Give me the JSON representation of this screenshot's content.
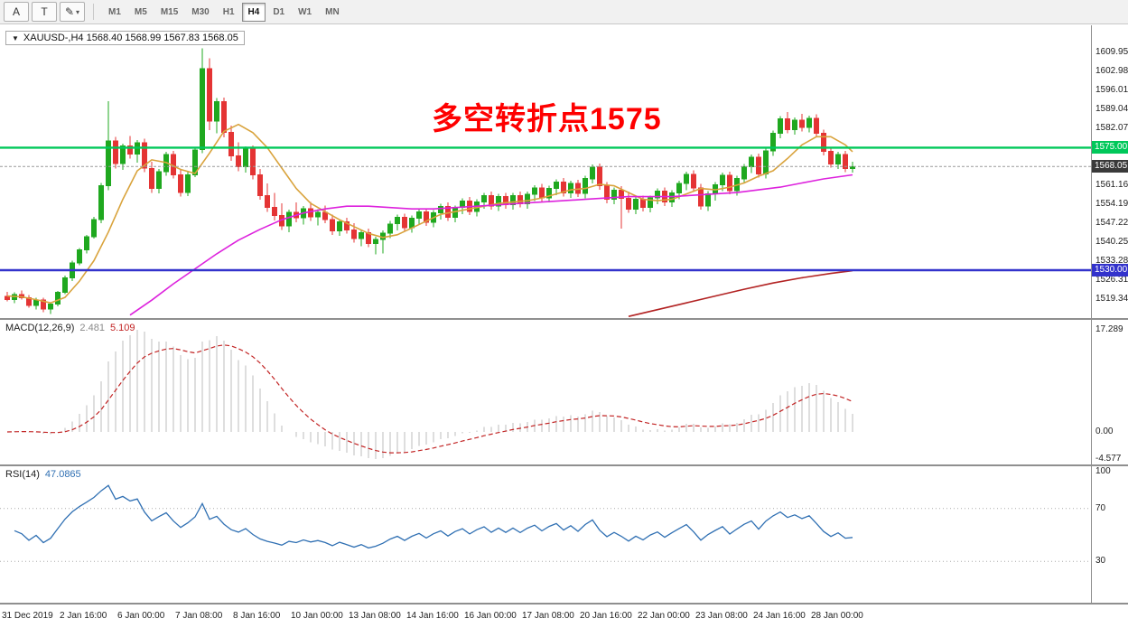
{
  "toolbar": {
    "tool_buttons": [
      {
        "label": "A"
      },
      {
        "label": "T"
      },
      {
        "label": "✎",
        "caret": "▾"
      }
    ],
    "timeframes": [
      "M1",
      "M5",
      "M15",
      "M30",
      "H1",
      "H4",
      "D1",
      "W1",
      "MN"
    ],
    "active_timeframe": "H4"
  },
  "chart": {
    "title": "XAUUSD-,H4  1568.40 1568.99 1567.83 1568.05",
    "symbol_marker": "▼",
    "annotation": {
      "text": "多空转折点1575",
      "color": "#FE0000"
    },
    "colors": {
      "up": "#1FA81F",
      "down": "#E43434",
      "ma_fast": "#D9A33C",
      "ma_mid": "#DD22DD",
      "ma_slow": "#B22222",
      "resistance": "#00C85A",
      "support": "#3333CC",
      "price_badge_bg": "#3A3A3A",
      "macd_hist": "#BDBDBD",
      "macd_signal": "#C22424",
      "rsi": "#3070B3"
    }
  },
  "chart_data": {
    "type": "candlestick",
    "symbol": "XAUUSD-",
    "period": "H4",
    "title": "XAUUSD-,H4 1568.40 1568.99 1567.83 1568.05",
    "ohlc": [
      [
        1520.3,
        1522.1,
        1518.6,
        1519.2
      ],
      [
        1519.2,
        1521.8,
        1517.9,
        1521.0
      ],
      [
        1521.0,
        1522.6,
        1519.2,
        1519.8
      ],
      [
        1519.8,
        1520.9,
        1516.2,
        1517.1
      ],
      [
        1517.1,
        1519.8,
        1515.6,
        1519.0
      ],
      [
        1519.0,
        1519.9,
        1514.6,
        1515.8
      ],
      [
        1515.8,
        1518.2,
        1513.9,
        1517.5
      ],
      [
        1517.5,
        1522.4,
        1516.8,
        1521.8
      ],
      [
        1521.8,
        1528.0,
        1521.2,
        1527.2
      ],
      [
        1527.2,
        1533.5,
        1526.0,
        1532.6
      ],
      [
        1532.6,
        1538.2,
        1531.8,
        1537.4
      ],
      [
        1537.4,
        1543.0,
        1536.2,
        1542.2
      ],
      [
        1542.2,
        1549.5,
        1541.6,
        1548.6
      ],
      [
        1548.6,
        1562.0,
        1547.2,
        1561.0
      ],
      [
        1561.0,
        1592.0,
        1559.4,
        1577.5
      ],
      [
        1577.5,
        1579.0,
        1567.4,
        1569.2
      ],
      [
        1569.2,
        1576.5,
        1566.8,
        1575.6
      ],
      [
        1575.6,
        1579.2,
        1571.0,
        1572.6
      ],
      [
        1572.6,
        1577.8,
        1569.4,
        1576.8
      ],
      [
        1576.8,
        1578.2,
        1566.0,
        1567.4
      ],
      [
        1567.4,
        1569.8,
        1558.4,
        1560.0
      ],
      [
        1560.0,
        1567.2,
        1558.2,
        1566.2
      ],
      [
        1566.2,
        1573.4,
        1564.6,
        1572.4
      ],
      [
        1572.4,
        1573.8,
        1563.6,
        1565.0
      ],
      [
        1565.0,
        1567.2,
        1557.0,
        1558.6
      ],
      [
        1558.6,
        1566.0,
        1557.2,
        1565.0
      ],
      [
        1565.0,
        1575.2,
        1564.2,
        1574.2
      ],
      [
        1574.2,
        1611.4,
        1573.0,
        1604.0
      ],
      [
        1604.0,
        1607.8,
        1581.4,
        1584.8
      ],
      [
        1584.8,
        1593.2,
        1580.2,
        1591.8
      ],
      [
        1591.8,
        1593.4,
        1578.8,
        1580.6
      ],
      [
        1580.6,
        1583.0,
        1570.2,
        1572.0
      ],
      [
        1572.0,
        1577.0,
        1566.4,
        1568.0
      ],
      [
        1568.0,
        1575.4,
        1565.8,
        1574.4
      ],
      [
        1574.4,
        1575.8,
        1563.4,
        1565.0
      ],
      [
        1565.0,
        1567.2,
        1555.8,
        1557.4
      ],
      [
        1557.4,
        1561.8,
        1551.4,
        1553.0
      ],
      [
        1553.0,
        1558.4,
        1548.2,
        1550.0
      ],
      [
        1550.0,
        1554.6,
        1544.8,
        1546.2
      ],
      [
        1546.2,
        1552.2,
        1544.0,
        1551.2
      ],
      [
        1551.2,
        1554.8,
        1547.6,
        1549.2
      ],
      [
        1549.2,
        1553.6,
        1546.8,
        1552.6
      ],
      [
        1552.6,
        1555.0,
        1548.0,
        1549.6
      ],
      [
        1549.6,
        1552.4,
        1546.4,
        1551.2
      ],
      [
        1551.2,
        1553.8,
        1547.2,
        1548.6
      ],
      [
        1548.6,
        1550.4,
        1543.0,
        1544.4
      ],
      [
        1544.4,
        1548.8,
        1542.6,
        1547.8
      ],
      [
        1547.8,
        1549.2,
        1543.4,
        1544.8
      ],
      [
        1544.8,
        1547.2,
        1540.2,
        1541.6
      ],
      [
        1541.6,
        1545.0,
        1538.8,
        1543.8
      ],
      [
        1543.8,
        1545.2,
        1538.4,
        1539.8
      ],
      [
        1539.8,
        1542.2,
        1535.8,
        1541.2
      ],
      [
        1541.2,
        1544.6,
        1536.2,
        1543.6
      ],
      [
        1543.6,
        1548.0,
        1541.8,
        1547.0
      ],
      [
        1547.0,
        1550.4,
        1544.6,
        1549.4
      ],
      [
        1549.4,
        1550.8,
        1544.2,
        1545.6
      ],
      [
        1545.6,
        1550.0,
        1543.8,
        1549.0
      ],
      [
        1549.0,
        1552.4,
        1546.6,
        1551.4
      ],
      [
        1551.4,
        1552.8,
        1546.2,
        1547.6
      ],
      [
        1547.6,
        1552.0,
        1545.8,
        1551.0
      ],
      [
        1551.0,
        1554.4,
        1548.6,
        1553.4
      ],
      [
        1553.4,
        1554.8,
        1548.0,
        1549.4
      ],
      [
        1549.4,
        1553.8,
        1547.6,
        1553.0
      ],
      [
        1553.0,
        1556.4,
        1550.6,
        1555.4
      ],
      [
        1555.4,
        1556.8,
        1550.2,
        1551.6
      ],
      [
        1551.6,
        1556.0,
        1549.8,
        1555.0
      ],
      [
        1555.0,
        1558.4,
        1552.6,
        1557.4
      ],
      [
        1557.4,
        1558.8,
        1552.2,
        1553.6
      ],
      [
        1553.6,
        1558.0,
        1551.8,
        1557.0
      ],
      [
        1557.0,
        1558.4,
        1552.6,
        1554.0
      ],
      [
        1554.0,
        1558.4,
        1552.2,
        1557.4
      ],
      [
        1557.4,
        1558.8,
        1553.0,
        1554.4
      ],
      [
        1554.4,
        1558.8,
        1552.6,
        1557.8
      ],
      [
        1557.8,
        1561.2,
        1555.4,
        1560.2
      ],
      [
        1560.2,
        1561.6,
        1555.2,
        1556.6
      ],
      [
        1556.6,
        1561.0,
        1554.8,
        1560.0
      ],
      [
        1560.0,
        1563.4,
        1557.6,
        1562.4
      ],
      [
        1562.4,
        1563.8,
        1557.0,
        1558.4
      ],
      [
        1558.4,
        1562.8,
        1556.6,
        1561.8
      ],
      [
        1561.8,
        1563.2,
        1556.8,
        1558.2
      ],
      [
        1558.2,
        1564.6,
        1556.4,
        1563.6
      ],
      [
        1563.6,
        1568.8,
        1561.8,
        1567.8
      ],
      [
        1567.8,
        1569.2,
        1559.6,
        1561.0
      ],
      [
        1561.0,
        1562.4,
        1554.6,
        1556.0
      ],
      [
        1556.0,
        1560.4,
        1554.2,
        1559.4
      ],
      [
        1559.4,
        1560.8,
        1545.2,
        1556.4
      ],
      [
        1556.4,
        1558.8,
        1551.0,
        1552.4
      ],
      [
        1552.4,
        1556.8,
        1550.6,
        1556.0
      ],
      [
        1556.0,
        1557.4,
        1551.6,
        1553.0
      ],
      [
        1553.0,
        1557.4,
        1551.2,
        1556.6
      ],
      [
        1556.6,
        1560.0,
        1554.2,
        1559.0
      ],
      [
        1559.0,
        1560.4,
        1553.6,
        1555.0
      ],
      [
        1555.0,
        1559.4,
        1553.2,
        1558.4
      ],
      [
        1558.4,
        1562.8,
        1556.0,
        1561.8
      ],
      [
        1561.8,
        1566.2,
        1559.4,
        1565.2
      ],
      [
        1565.2,
        1566.6,
        1558.8,
        1560.2
      ],
      [
        1560.2,
        1561.6,
        1552.2,
        1553.6
      ],
      [
        1553.6,
        1559.0,
        1551.8,
        1558.0
      ],
      [
        1558.0,
        1562.4,
        1555.6,
        1561.4
      ],
      [
        1561.4,
        1565.8,
        1559.0,
        1564.8
      ],
      [
        1564.8,
        1566.2,
        1557.8,
        1559.2
      ],
      [
        1559.2,
        1564.6,
        1557.4,
        1563.6
      ],
      [
        1563.6,
        1569.0,
        1561.8,
        1568.0
      ],
      [
        1568.0,
        1572.4,
        1565.6,
        1571.4
      ],
      [
        1571.4,
        1572.8,
        1564.0,
        1565.4
      ],
      [
        1565.4,
        1574.8,
        1563.6,
        1573.8
      ],
      [
        1573.8,
        1581.2,
        1572.0,
        1580.2
      ],
      [
        1580.2,
        1586.6,
        1578.4,
        1585.6
      ],
      [
        1585.6,
        1588.0,
        1580.2,
        1581.6
      ],
      [
        1581.6,
        1586.0,
        1579.8,
        1585.0
      ],
      [
        1585.0,
        1587.4,
        1581.0,
        1582.4
      ],
      [
        1582.4,
        1586.8,
        1580.6,
        1585.8
      ],
      [
        1585.8,
        1587.2,
        1578.8,
        1580.2
      ],
      [
        1580.2,
        1581.6,
        1572.2,
        1573.6
      ],
      [
        1573.6,
        1575.0,
        1567.6,
        1569.0
      ],
      [
        1569.0,
        1573.4,
        1567.2,
        1572.4
      ],
      [
        1572.4,
        1573.8,
        1566.0,
        1567.4
      ],
      [
        1567.4,
        1569.8,
        1565.8,
        1568.05
      ]
    ],
    "x_axis": {
      "labels": [
        [
          0,
          "31 Dec 2019"
        ],
        [
          8,
          "2 Jan 16:00"
        ],
        [
          16,
          "6 Jan 00:00"
        ],
        [
          24,
          "7 Jan 08:00"
        ],
        [
          32,
          "8 Jan 16:00"
        ],
        [
          40,
          "10 Jan 00:00"
        ],
        [
          48,
          "13 Jan 08:00"
        ],
        [
          56,
          "14 Jan 16:00"
        ],
        [
          64,
          "16 Jan 00:00"
        ],
        [
          72,
          "17 Jan 08:00"
        ],
        [
          80,
          "20 Jan 16:00"
        ],
        [
          88,
          "22 Jan 00:00"
        ],
        [
          96,
          "23 Jan 08:00"
        ],
        [
          104,
          "24 Jan 16:00"
        ],
        [
          112,
          "28 Jan 00:00"
        ]
      ]
    },
    "y_axis": {
      "min": 1513.0,
      "max": 1618.0,
      "ticks": [
        "1609.95",
        "1602.98",
        "1596.01",
        "1589.04",
        "1582.07",
        "1575.10",
        "1568.13",
        "1561.16",
        "1554.19",
        "1547.22",
        "1540.25",
        "1533.28",
        "1526.31",
        "1519.34"
      ]
    },
    "hlines": [
      {
        "price": 1575.0,
        "label": "1575.00",
        "color_key": "resistance"
      },
      {
        "price": 1530.0,
        "label": "1530.00",
        "color_key": "support"
      }
    ],
    "price_line": {
      "price": 1568.05,
      "label": "1568.05"
    },
    "moving_averages": [
      {
        "name": "ma-fast-line",
        "color_key": "ma_fast",
        "points": [
          [
            0,
            1520.5
          ],
          [
            2,
            1520.2
          ],
          [
            4,
            1519.2
          ],
          [
            6,
            1518.0
          ],
          [
            8,
            1520.0
          ],
          [
            10,
            1526.0
          ],
          [
            12,
            1533.5
          ],
          [
            14,
            1544.0
          ],
          [
            16,
            1556.0
          ],
          [
            18,
            1566.5
          ],
          [
            20,
            1570.5
          ],
          [
            22,
            1569.5
          ],
          [
            24,
            1567.0
          ],
          [
            26,
            1565.5
          ],
          [
            28,
            1573.0
          ],
          [
            30,
            1581.0
          ],
          [
            32,
            1583.5
          ],
          [
            34,
            1580.5
          ],
          [
            36,
            1575.0
          ],
          [
            38,
            1567.5
          ],
          [
            40,
            1560.0
          ],
          [
            42,
            1554.5
          ],
          [
            44,
            1551.5
          ],
          [
            46,
            1548.5
          ],
          [
            48,
            1546.0
          ],
          [
            50,
            1543.5
          ],
          [
            52,
            1542.0
          ],
          [
            54,
            1543.0
          ],
          [
            56,
            1545.5
          ],
          [
            58,
            1548.0
          ],
          [
            60,
            1550.5
          ],
          [
            62,
            1551.5
          ],
          [
            64,
            1552.5
          ],
          [
            66,
            1553.5
          ],
          [
            68,
            1554.5
          ],
          [
            70,
            1555.0
          ],
          [
            72,
            1555.5
          ],
          [
            74,
            1556.5
          ],
          [
            76,
            1558.0
          ],
          [
            78,
            1559.5
          ],
          [
            80,
            1560.0
          ],
          [
            82,
            1561.5
          ],
          [
            84,
            1561.0
          ],
          [
            86,
            1558.5
          ],
          [
            88,
            1556.0
          ],
          [
            90,
            1555.5
          ],
          [
            92,
            1556.0
          ],
          [
            94,
            1558.0
          ],
          [
            96,
            1560.0
          ],
          [
            98,
            1559.5
          ],
          [
            100,
            1560.5
          ],
          [
            102,
            1562.0
          ],
          [
            104,
            1564.5
          ],
          [
            106,
            1566.5
          ],
          [
            108,
            1571.0
          ],
          [
            110,
            1576.0
          ],
          [
            112,
            1579.0
          ],
          [
            114,
            1579.0
          ],
          [
            116,
            1576.0
          ],
          [
            117,
            1573.5
          ]
        ]
      },
      {
        "name": "ma-mid-line",
        "color_key": "ma_mid",
        "points": [
          [
            17,
            1513.5
          ],
          [
            20,
            1519.0
          ],
          [
            23,
            1525.0
          ],
          [
            26,
            1530.5
          ],
          [
            29,
            1536.0
          ],
          [
            32,
            1541.0
          ],
          [
            35,
            1545.0
          ],
          [
            38,
            1548.5
          ],
          [
            41,
            1551.0
          ],
          [
            44,
            1552.5
          ],
          [
            47,
            1553.5
          ],
          [
            50,
            1553.5
          ],
          [
            53,
            1553.0
          ],
          [
            56,
            1552.5
          ],
          [
            59,
            1552.5
          ],
          [
            62,
            1553.0
          ],
          [
            65,
            1553.5
          ],
          [
            68,
            1554.0
          ],
          [
            71,
            1554.5
          ],
          [
            74,
            1555.0
          ],
          [
            77,
            1555.5
          ],
          [
            80,
            1556.0
          ],
          [
            83,
            1556.5
          ],
          [
            86,
            1557.0
          ],
          [
            89,
            1557.0
          ],
          [
            92,
            1557.0
          ],
          [
            95,
            1557.5
          ],
          [
            98,
            1558.0
          ],
          [
            101,
            1558.5
          ],
          [
            104,
            1559.5
          ],
          [
            107,
            1560.5
          ],
          [
            110,
            1562.0
          ],
          [
            113,
            1563.5
          ],
          [
            117,
            1565.0
          ]
        ]
      },
      {
        "name": "ma-slow-line",
        "color_key": "ma_slow",
        "points": [
          [
            86,
            1513.0
          ],
          [
            90,
            1515.5
          ],
          [
            94,
            1518.0
          ],
          [
            98,
            1520.5
          ],
          [
            102,
            1523.0
          ],
          [
            106,
            1525.3
          ],
          [
            110,
            1527.2
          ],
          [
            114,
            1528.8
          ],
          [
            117,
            1529.8
          ]
        ]
      }
    ],
    "indicators": {
      "macd": {
        "name_label": "MACD(12,26,9)",
        "fast": 12,
        "slow": 26,
        "signal": 9,
        "main_value": "2.481",
        "signal_value": "5.109",
        "axis_ticks": [
          "17.289",
          "0.00",
          "-4.577"
        ]
      },
      "rsi": {
        "name_label": "RSI(14)",
        "period": 14,
        "value": "47.0865",
        "levels": [
          70,
          30
        ],
        "axis_ticks": [
          "100",
          "70",
          "30"
        ]
      }
    }
  }
}
